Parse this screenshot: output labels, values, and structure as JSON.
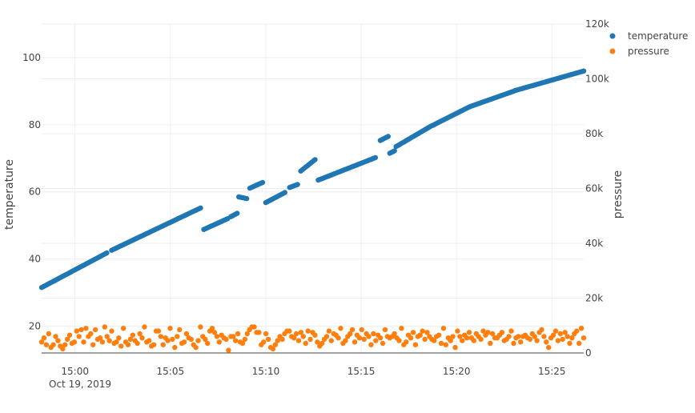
{
  "chart_data": {
    "type": "scatter",
    "title": "",
    "x_axis": {
      "type": "date",
      "range": [
        "2019-10-19 14:58:15",
        "2019-10-19 15:26:40"
      ],
      "tick_labels": [
        "15:00",
        "15:05",
        "15:10",
        "15:15",
        "15:20",
        "15:25"
      ],
      "date_label": "Oct 19, 2019"
    },
    "y_axis_left": {
      "label": "temperature",
      "range": [
        12,
        110
      ],
      "tick_values": [
        20,
        40,
        60,
        80,
        100
      ],
      "tick_labels": [
        "20",
        "40",
        "60",
        "80",
        "100"
      ]
    },
    "y_axis_right": {
      "label": "pressure",
      "range": [
        0,
        120000
      ],
      "tick_values": [
        0,
        20000,
        40000,
        60000,
        80000,
        100000,
        120000
      ],
      "tick_labels": [
        "0",
        "20k",
        "40k",
        "60k",
        "80k",
        "100k",
        "120k"
      ]
    },
    "grid": true,
    "legend_position": "top-right",
    "series": [
      {
        "name": "temperature",
        "axis": "left",
        "color": "#1f77b4",
        "segments": [
          {
            "t_start": "2019-10-19 14:58:15",
            "t_end": "2019-10-19 15:01:40",
            "y_start": 31.5,
            "y_end": 41.8
          },
          {
            "t_start": "2019-10-19 15:01:55",
            "t_end": "2019-10-19 15:06:35",
            "y_start": 42.6,
            "y_end": 55.2
          },
          {
            "t_start": "2019-10-19 15:06:45",
            "t_end": "2019-10-19 15:08:00",
            "y_start": 48.8,
            "y_end": 52.0
          },
          {
            "t_start": "2019-10-19 15:08:10",
            "t_end": "2019-10-19 15:08:30",
            "y_start": 52.6,
            "y_end": 53.6
          },
          {
            "t_start": "2019-10-19 15:08:35",
            "t_end": "2019-10-19 15:09:00",
            "y_start": 58.5,
            "y_end": 58.0
          },
          {
            "t_start": "2019-10-19 15:09:10",
            "t_end": "2019-10-19 15:09:50",
            "y_start": 61.1,
            "y_end": 62.8
          },
          {
            "t_start": "2019-10-19 15:10:00",
            "t_end": "2019-10-19 15:11:00",
            "y_start": 56.8,
            "y_end": 59.8
          },
          {
            "t_start": "2019-10-19 15:11:15",
            "t_end": "2019-10-19 15:11:40",
            "y_start": 61.3,
            "y_end": 62.2
          },
          {
            "t_start": "2019-10-19 15:11:50",
            "t_end": "2019-10-19 15:12:35",
            "y_start": 66.2,
            "y_end": 69.6
          },
          {
            "t_start": "2019-10-19 15:12:45",
            "t_end": "2019-10-19 15:15:45",
            "y_start": 63.5,
            "y_end": 70.2
          },
          {
            "t_start": "2019-10-19 15:16:00",
            "t_end": "2019-10-19 15:16:25",
            "y_start": 75.3,
            "y_end": 76.5
          },
          {
            "t_start": "2019-10-19 15:16:30",
            "t_end": "2019-10-19 15:16:45",
            "y_start": 71.5,
            "y_end": 72.2
          },
          {
            "t_start": "2019-10-19 15:16:50",
            "t_end": "2019-10-19 15:18:40",
            "y_start": 73.5,
            "y_end": 79.6
          },
          {
            "t_start": "2019-10-19 15:18:45",
            "t_end": "2019-10-19 15:20:40",
            "y_start": 79.8,
            "y_end": 85.3
          },
          {
            "t_start": "2019-10-19 15:20:45",
            "t_end": "2019-10-19 15:23:00",
            "y_start": 85.5,
            "y_end": 90.0
          },
          {
            "t_start": "2019-10-19 15:23:05",
            "t_end": "2019-10-19 15:26:40",
            "y_start": 90.2,
            "y_end": 96.0
          }
        ]
      },
      {
        "name": "pressure",
        "axis": "right",
        "color": "#ff7f0e",
        "t_start": "2019-10-19 14:58:15",
        "t_end": "2019-10-19 15:26:40",
        "values": [
          4000,
          5500,
          3000,
          7000,
          2000,
          3000,
          6000,
          4500,
          2500,
          1500,
          3000,
          5000,
          6500,
          3500,
          4000,
          8000,
          6000,
          8500,
          4000,
          9000,
          6000,
          7000,
          3000,
          8500,
          5000,
          5500,
          4000,
          9500,
          6000,
          4500,
          8000,
          3500,
          4000,
          5500,
          2500,
          9000,
          4000,
          3000,
          5000,
          6500,
          4500,
          3500,
          7000,
          5500,
          9500,
          4000,
          4500,
          2500,
          3000,
          8000,
          8000,
          6000,
          3000,
          5500,
          4500,
          9000,
          5000,
          2000,
          6000,
          8500,
          3500,
          4000,
          7000,
          5500,
          5000,
          3000,
          2000,
          4500,
          9500,
          6000,
          5000,
          3500,
          8000,
          9000,
          7500,
          6000,
          4000,
          6500,
          5500,
          5000,
          1000,
          6000,
          6000,
          4500,
          7000,
          4000,
          3500,
          5000,
          7000,
          8500,
          9500,
          9500,
          7500,
          7500,
          3000,
          4000,
          7000,
          5000,
          2000,
          1500,
          3000,
          4500,
          6000,
          5000,
          7000,
          8000,
          8000,
          6000,
          5500,
          7000,
          4500,
          7500,
          6000,
          3500,
          8000,
          5000,
          7500,
          6500,
          4000,
          2500,
          3500,
          5000,
          6000,
          8000,
          4500,
          7000,
          6500,
          5500,
          9000,
          3500,
          4500,
          6000,
          7000,
          8500,
          4000,
          6500,
          5500,
          8500,
          5000,
          7000,
          6000,
          3000,
          7000,
          4500,
          6500,
          5500,
          3500,
          8500,
          6000,
          5500,
          6000,
          7000,
          5500,
          4500,
          9000,
          3000,
          4000,
          6500,
          5500,
          7500,
          3000,
          6000,
          6500,
          8000,
          5000,
          7500,
          6000,
          5000,
          4500,
          6000,
          6500,
          3500,
          9000,
          3000,
          5500,
          4500,
          6000,
          2000,
          8000,
          6000,
          4500,
          6500,
          5500,
          7500,
          5500,
          4500,
          7000,
          6000,
          5000,
          8000,
          6500,
          7500,
          3500,
          7000,
          5500,
          5500,
          6500,
          7500,
          4500,
          5000,
          6000,
          8000,
          3500,
          5500,
          6000,
          4000,
          6000,
          6500,
          5500,
          5000,
          7000,
          6000,
          4500,
          7500,
          8500,
          6000,
          4000,
          2000,
          5500,
          6500,
          8000,
          4500,
          7000,
          5000,
          7500,
          6000,
          3500,
          5500,
          7000,
          8000,
          3500,
          9000,
          5500
        ]
      }
    ]
  }
}
